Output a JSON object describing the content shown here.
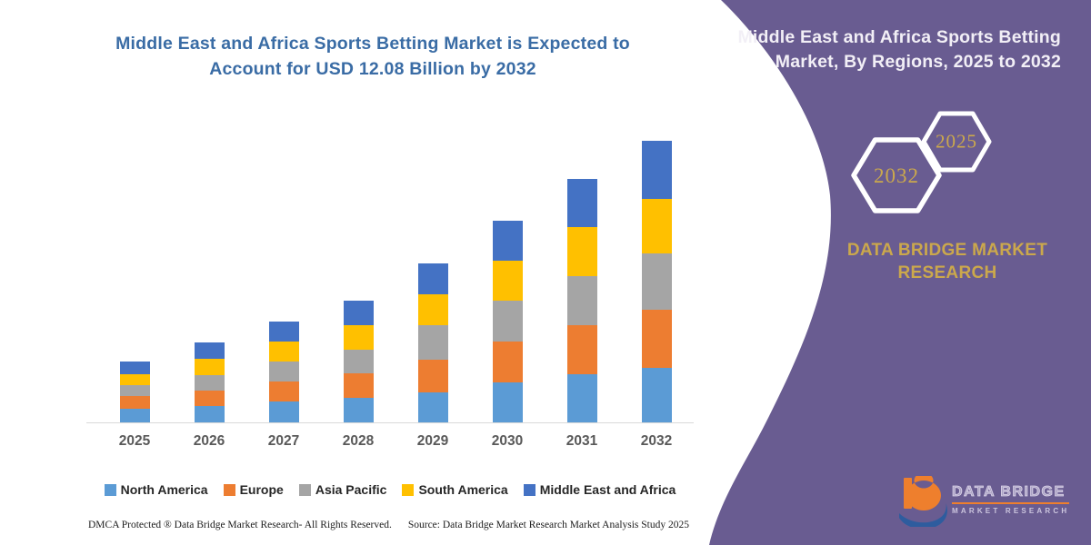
{
  "theme": {
    "purple": "#695C91",
    "gold": "#CBA84C",
    "title_blue": "#3A6CA5",
    "baseline": "#D9D9D9",
    "logo_orange": "#EE7F2D",
    "logo_blue": "#2E5C9E"
  },
  "left_panel": {
    "title_line1": "Middle East and Africa Sports Betting Market is Expected to",
    "title_line2": "Account for USD 12.08 Billion by 2032",
    "footer": {
      "dmca": "DMCA Protected ® Data Bridge Market Research-  All Rights Reserved.",
      "source": "Source: Data Bridge Market Research  Market Analysis Study 2025"
    }
  },
  "chart_data": {
    "type": "bar",
    "stacked": true,
    "title": "Middle East and Africa Sports Betting Market is Expected to Account for USD 12.08 Billion by 2032",
    "unit": "USD Billion",
    "categories": [
      "2025",
      "2026",
      "2027",
      "2028",
      "2029",
      "2030",
      "2031",
      "2032"
    ],
    "series": [
      {
        "name": "North America",
        "color": "#5B9BD5",
        "values": [
          0.58,
          0.7,
          0.88,
          1.05,
          1.29,
          1.72,
          2.08,
          2.34
        ]
      },
      {
        "name": "Europe",
        "color": "#ED7D31",
        "values": [
          0.55,
          0.68,
          0.86,
          1.04,
          1.4,
          1.74,
          2.1,
          2.49
        ]
      },
      {
        "name": "Asia Pacific",
        "color": "#A5A5A5",
        "values": [
          0.47,
          0.66,
          0.87,
          1.05,
          1.48,
          1.75,
          2.1,
          2.42
        ]
      },
      {
        "name": "South America",
        "color": "#FFC000",
        "values": [
          0.47,
          0.68,
          0.86,
          1.04,
          1.33,
          1.72,
          2.08,
          2.34
        ]
      },
      {
        "name": "Middle East and Africa",
        "color": "#4472C4",
        "values": [
          0.55,
          0.7,
          0.86,
          1.04,
          1.33,
          1.72,
          2.08,
          2.49
        ]
      }
    ],
    "totals": [
      2.62,
      3.42,
      4.33,
      5.22,
      6.83,
      8.65,
      10.44,
      12.08
    ],
    "ylim": [
      0,
      12.08
    ],
    "grid": false,
    "yaxis_visible": false,
    "legend_position": "bottom"
  },
  "right_panel": {
    "title_line1": "Middle East and Africa Sports Betting",
    "title_line2": "Market, By Regions, 2025 to 2032",
    "hexagons": [
      {
        "label": "2032"
      },
      {
        "label": "2025"
      }
    ],
    "brand_line1": "DATA BRIDGE MARKET",
    "brand_line2": "RESEARCH",
    "logo": {
      "name": "DATA BRIDGE",
      "subtitle": "MARKET RESEARCH"
    }
  }
}
